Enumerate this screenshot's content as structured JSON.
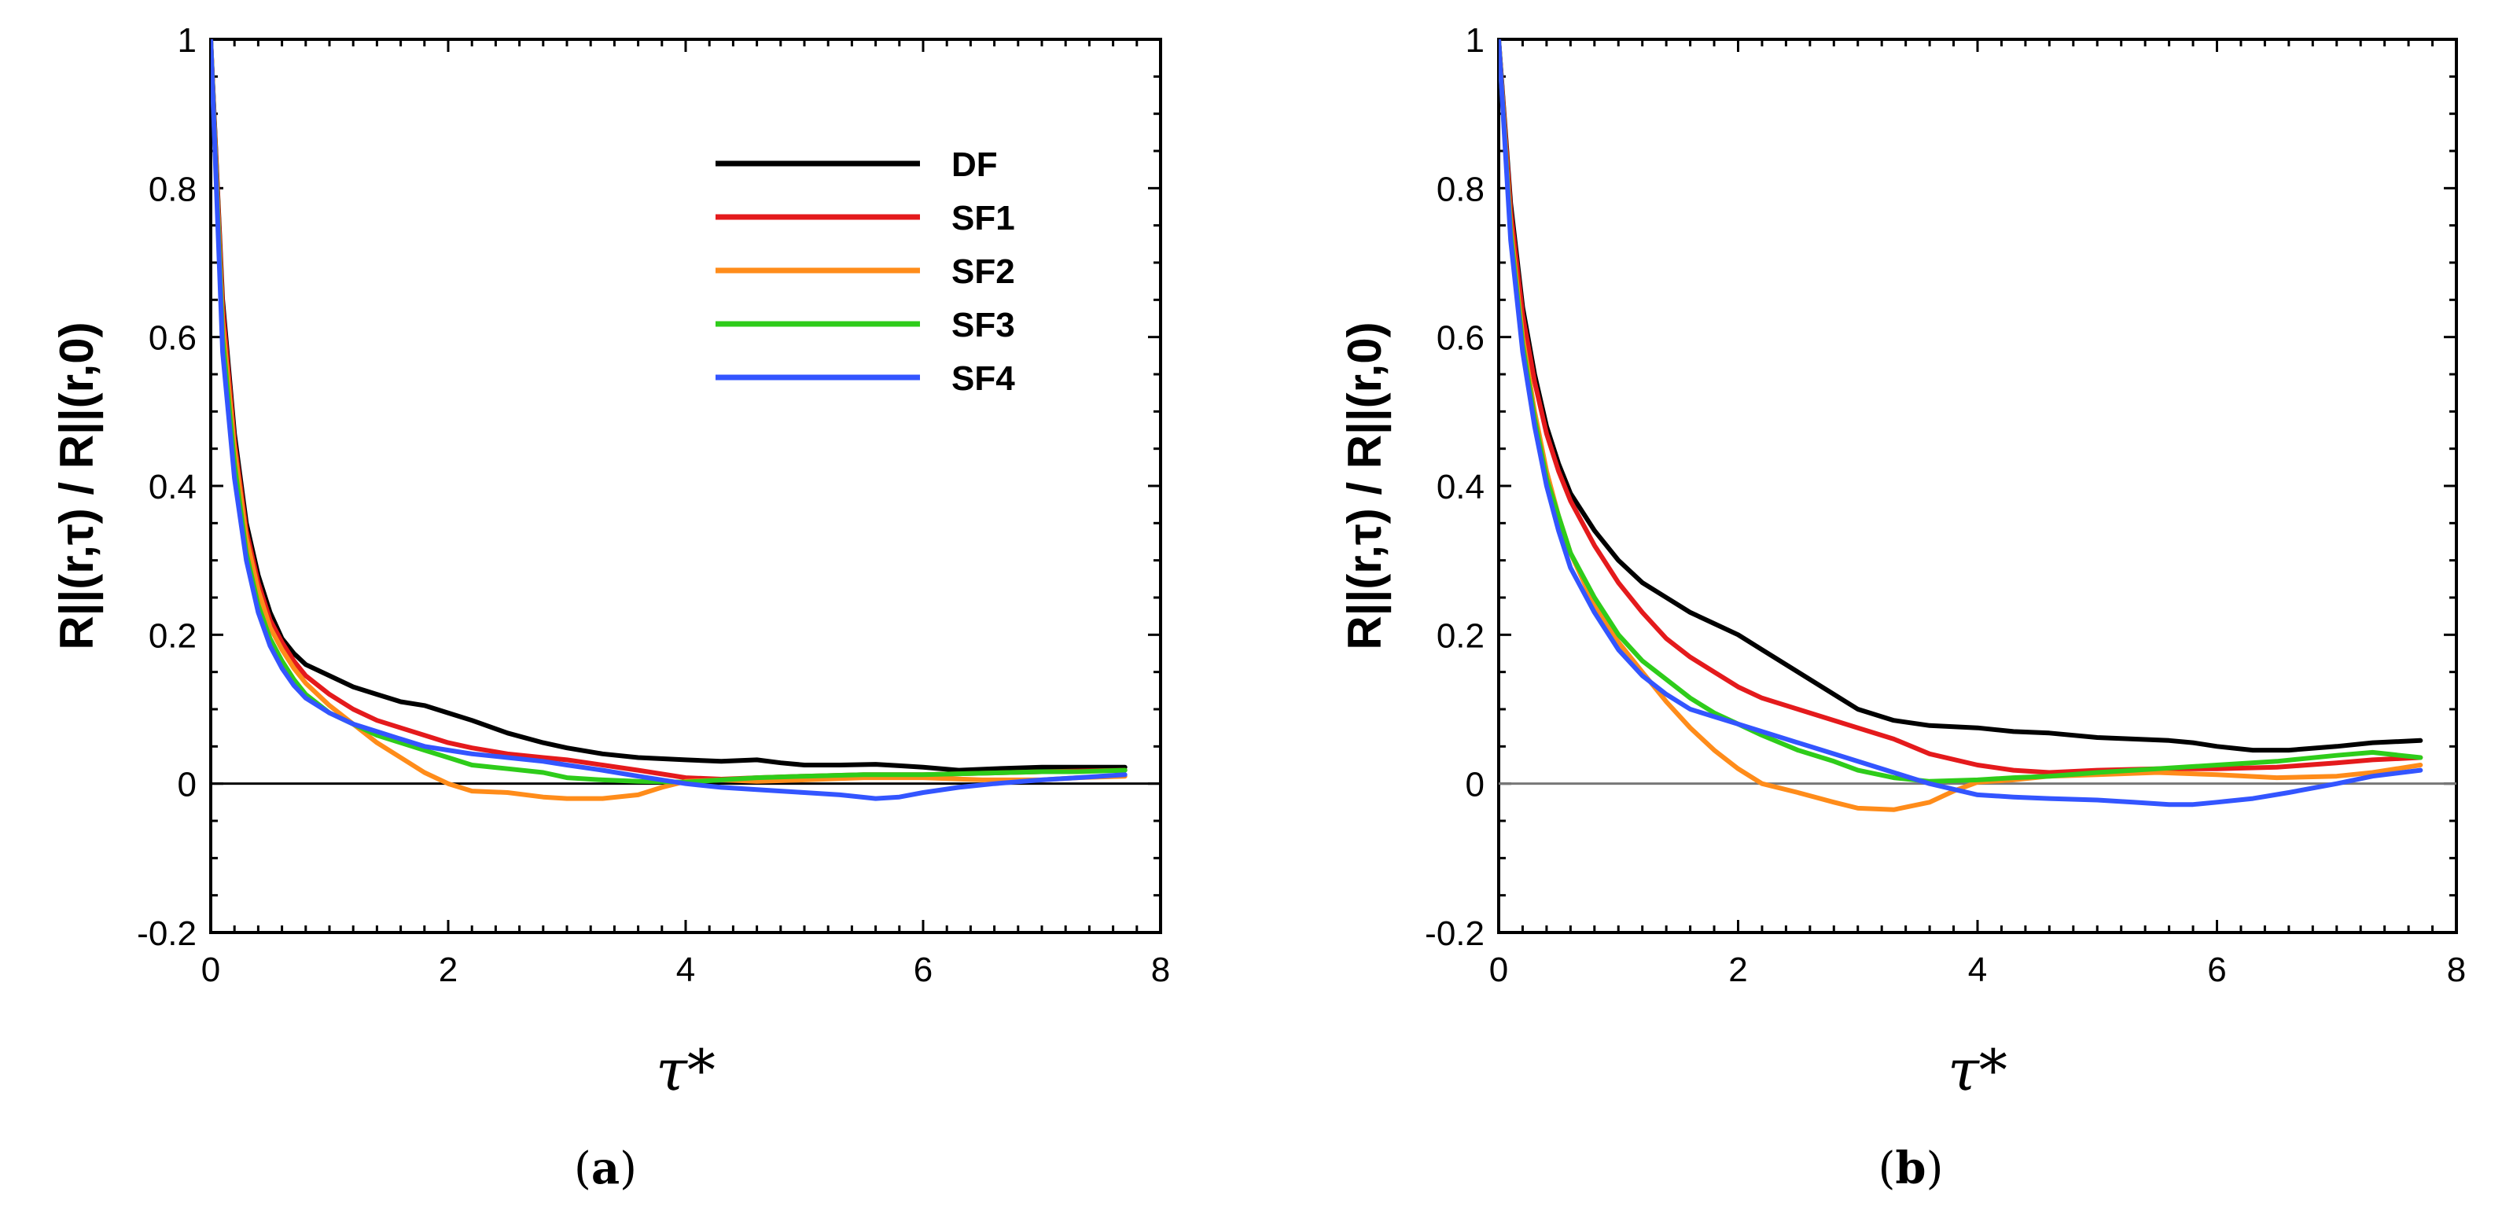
{
  "chart_data": [
    {
      "type": "line",
      "panel": "a",
      "caption_letter": "a",
      "xlabel": "τ*",
      "ylabel": "R||(r,τ) / R||(r,0)",
      "xlim": [
        0,
        8
      ],
      "ylim": [
        -0.2,
        1
      ],
      "xticks": [
        "0",
        "2",
        "4",
        "6",
        "8"
      ],
      "yticks": [
        "-0.2",
        "0",
        "0.2",
        "0.4",
        "0.6",
        "0.8",
        "1"
      ],
      "grid": false,
      "zero_line": true,
      "legend": {
        "position": "top-right"
      },
      "series": [
        {
          "name": "DF",
          "color": "#000000",
          "x": [
            0,
            0.1,
            0.2,
            0.3,
            0.4,
            0.5,
            0.6,
            0.7,
            0.8,
            1.0,
            1.2,
            1.4,
            1.6,
            1.8,
            2.0,
            2.2,
            2.5,
            2.8,
            3.0,
            3.3,
            3.6,
            4.0,
            4.3,
            4.6,
            4.8,
            5.0,
            5.3,
            5.6,
            5.8,
            6.0,
            6.3,
            6.6,
            7.0,
            7.3,
            7.7
          ],
          "y": [
            1.0,
            0.65,
            0.47,
            0.35,
            0.28,
            0.23,
            0.195,
            0.175,
            0.16,
            0.145,
            0.13,
            0.12,
            0.11,
            0.105,
            0.095,
            0.085,
            0.068,
            0.055,
            0.048,
            0.04,
            0.035,
            0.032,
            0.03,
            0.032,
            0.028,
            0.025,
            0.025,
            0.026,
            0.024,
            0.022,
            0.018,
            0.02,
            0.022,
            0.022,
            0.022
          ]
        },
        {
          "name": "SF1",
          "color": "#e41a1c",
          "x": [
            0,
            0.1,
            0.2,
            0.3,
            0.4,
            0.5,
            0.6,
            0.7,
            0.8,
            1.0,
            1.2,
            1.4,
            1.6,
            1.8,
            2.0,
            2.2,
            2.5,
            2.8,
            3.0,
            3.3,
            3.6,
            4.0,
            4.3,
            4.6,
            5.0,
            5.5,
            6.0,
            6.5,
            7.0,
            7.3,
            7.7
          ],
          "y": [
            1.0,
            0.64,
            0.46,
            0.34,
            0.27,
            0.22,
            0.19,
            0.165,
            0.145,
            0.12,
            0.1,
            0.085,
            0.075,
            0.065,
            0.055,
            0.048,
            0.04,
            0.035,
            0.032,
            0.025,
            0.018,
            0.008,
            0.006,
            0.008,
            0.01,
            0.012,
            0.012,
            0.014,
            0.016,
            0.017,
            0.018
          ]
        },
        {
          "name": "SF2",
          "color": "#ff8c1a",
          "x": [
            0,
            0.1,
            0.2,
            0.3,
            0.4,
            0.5,
            0.6,
            0.7,
            0.8,
            1.0,
            1.2,
            1.4,
            1.6,
            1.8,
            2.0,
            2.2,
            2.5,
            2.8,
            3.0,
            3.3,
            3.6,
            3.8,
            4.0,
            4.3,
            4.6,
            5.0,
            5.5,
            6.0,
            6.5,
            7.0,
            7.3,
            7.7
          ],
          "y": [
            1.0,
            0.62,
            0.45,
            0.33,
            0.26,
            0.21,
            0.18,
            0.155,
            0.135,
            0.105,
            0.08,
            0.055,
            0.035,
            0.015,
            0.0,
            -0.01,
            -0.012,
            -0.018,
            -0.02,
            -0.02,
            -0.015,
            -0.005,
            0.003,
            0.005,
            0.003,
            0.005,
            0.008,
            0.008,
            0.005,
            0.005,
            0.008,
            0.01
          ]
        },
        {
          "name": "SF3",
          "color": "#2ecc1a",
          "x": [
            0,
            0.1,
            0.2,
            0.3,
            0.4,
            0.5,
            0.6,
            0.7,
            0.8,
            1.0,
            1.2,
            1.4,
            1.6,
            1.8,
            2.0,
            2.2,
            2.5,
            2.8,
            3.0,
            3.3,
            3.6,
            4.0,
            4.3,
            4.6,
            5.0,
            5.5,
            6.0,
            6.5,
            7.0,
            7.3,
            7.7
          ],
          "y": [
            1.0,
            0.6,
            0.43,
            0.31,
            0.24,
            0.195,
            0.165,
            0.14,
            0.12,
            0.095,
            0.08,
            0.065,
            0.055,
            0.045,
            0.035,
            0.025,
            0.02,
            0.015,
            0.008,
            0.005,
            0.003,
            0.002,
            0.005,
            0.008,
            0.01,
            0.012,
            0.012,
            0.014,
            0.016,
            0.016,
            0.018
          ]
        },
        {
          "name": "SF4",
          "color": "#3355ff",
          "x": [
            0,
            0.1,
            0.2,
            0.3,
            0.4,
            0.5,
            0.6,
            0.7,
            0.8,
            1.0,
            1.2,
            1.4,
            1.6,
            1.8,
            2.0,
            2.2,
            2.5,
            2.8,
            3.0,
            3.3,
            3.6,
            4.0,
            4.3,
            4.6,
            5.0,
            5.3,
            5.6,
            5.8,
            6.0,
            6.3,
            6.6,
            7.0,
            7.3,
            7.7
          ],
          "y": [
            1.0,
            0.58,
            0.41,
            0.3,
            0.23,
            0.185,
            0.155,
            0.132,
            0.115,
            0.095,
            0.08,
            0.07,
            0.06,
            0.05,
            0.045,
            0.04,
            0.035,
            0.03,
            0.025,
            0.018,
            0.01,
            0.0,
            -0.005,
            -0.008,
            -0.012,
            -0.015,
            -0.02,
            -0.018,
            -0.012,
            -0.005,
            0.0,
            0.005,
            0.008,
            0.012
          ]
        }
      ]
    },
    {
      "type": "line",
      "panel": "b",
      "caption_letter": "b",
      "xlabel": "τ*",
      "ylabel": "R||(r,τ) / R||(r,0)",
      "xlim": [
        0,
        8
      ],
      "ylim": [
        -0.2,
        1
      ],
      "xticks": [
        "0",
        "2",
        "4",
        "6",
        "8"
      ],
      "yticks": [
        "-0.2",
        "0",
        "0.2",
        "0.4",
        "0.6",
        "0.8",
        "1"
      ],
      "grid": false,
      "zero_line": true,
      "series": [
        {
          "name": "DF",
          "color": "#000000",
          "x": [
            0,
            0.1,
            0.2,
            0.3,
            0.4,
            0.5,
            0.6,
            0.8,
            1.0,
            1.2,
            1.4,
            1.6,
            1.8,
            2.0,
            2.2,
            2.5,
            2.8,
            3.0,
            3.3,
            3.6,
            4.0,
            4.3,
            4.6,
            5.0,
            5.3,
            5.6,
            5.8,
            6.0,
            6.3,
            6.6,
            7.0,
            7.3,
            7.7
          ],
          "y": [
            1.0,
            0.78,
            0.64,
            0.55,
            0.48,
            0.43,
            0.39,
            0.34,
            0.3,
            0.27,
            0.25,
            0.23,
            0.215,
            0.2,
            0.18,
            0.15,
            0.12,
            0.1,
            0.085,
            0.078,
            0.075,
            0.07,
            0.068,
            0.062,
            0.06,
            0.058,
            0.055,
            0.05,
            0.045,
            0.045,
            0.05,
            0.055,
            0.058
          ]
        },
        {
          "name": "SF1",
          "color": "#e41a1c",
          "x": [
            0,
            0.1,
            0.2,
            0.3,
            0.4,
            0.5,
            0.6,
            0.8,
            1.0,
            1.2,
            1.4,
            1.6,
            1.8,
            2.0,
            2.2,
            2.5,
            2.8,
            3.0,
            3.3,
            3.6,
            4.0,
            4.3,
            4.6,
            5.0,
            5.5,
            6.0,
            6.5,
            7.0,
            7.3,
            7.7
          ],
          "y": [
            1.0,
            0.77,
            0.63,
            0.54,
            0.47,
            0.42,
            0.38,
            0.32,
            0.27,
            0.23,
            0.195,
            0.17,
            0.15,
            0.13,
            0.115,
            0.1,
            0.085,
            0.075,
            0.06,
            0.04,
            0.025,
            0.018,
            0.015,
            0.018,
            0.02,
            0.02,
            0.022,
            0.028,
            0.032,
            0.035
          ]
        },
        {
          "name": "SF2",
          "color": "#ff8c1a",
          "x": [
            0,
            0.1,
            0.2,
            0.3,
            0.4,
            0.5,
            0.6,
            0.8,
            1.0,
            1.2,
            1.4,
            1.6,
            1.8,
            2.0,
            2.2,
            2.5,
            2.8,
            3.0,
            3.3,
            3.6,
            3.8,
            4.0,
            4.3,
            4.6,
            5.0,
            5.5,
            6.0,
            6.5,
            7.0,
            7.3,
            7.7
          ],
          "y": [
            1.0,
            0.75,
            0.6,
            0.5,
            0.42,
            0.36,
            0.31,
            0.24,
            0.19,
            0.15,
            0.11,
            0.075,
            0.045,
            0.02,
            0.0,
            -0.012,
            -0.025,
            -0.033,
            -0.035,
            -0.025,
            -0.01,
            0.002,
            0.005,
            0.01,
            0.012,
            0.015,
            0.012,
            0.008,
            0.01,
            0.015,
            0.025
          ]
        },
        {
          "name": "SF3",
          "color": "#2ecc1a",
          "x": [
            0,
            0.1,
            0.2,
            0.3,
            0.4,
            0.5,
            0.6,
            0.8,
            1.0,
            1.2,
            1.4,
            1.6,
            1.8,
            2.0,
            2.2,
            2.5,
            2.8,
            3.0,
            3.3,
            3.6,
            4.0,
            4.3,
            4.6,
            5.0,
            5.5,
            6.0,
            6.5,
            7.0,
            7.3,
            7.7
          ],
          "y": [
            1.0,
            0.74,
            0.59,
            0.49,
            0.41,
            0.36,
            0.31,
            0.25,
            0.2,
            0.165,
            0.14,
            0.115,
            0.095,
            0.08,
            0.065,
            0.045,
            0.03,
            0.018,
            0.008,
            0.003,
            0.005,
            0.008,
            0.01,
            0.015,
            0.02,
            0.025,
            0.03,
            0.038,
            0.042,
            0.035
          ]
        },
        {
          "name": "SF4",
          "color": "#3355ff",
          "x": [
            0,
            0.1,
            0.2,
            0.3,
            0.4,
            0.5,
            0.6,
            0.8,
            1.0,
            1.2,
            1.4,
            1.6,
            1.8,
            2.0,
            2.2,
            2.5,
            2.8,
            3.0,
            3.3,
            3.6,
            4.0,
            4.3,
            4.6,
            5.0,
            5.3,
            5.6,
            5.8,
            6.0,
            6.3,
            6.6,
            7.0,
            7.3,
            7.7
          ],
          "y": [
            1.0,
            0.73,
            0.58,
            0.48,
            0.4,
            0.34,
            0.29,
            0.23,
            0.18,
            0.145,
            0.12,
            0.1,
            0.09,
            0.08,
            0.07,
            0.055,
            0.04,
            0.03,
            0.015,
            0.0,
            -0.015,
            -0.018,
            -0.02,
            -0.022,
            -0.025,
            -0.028,
            -0.028,
            -0.025,
            -0.02,
            -0.012,
            0.0,
            0.01,
            0.018
          ]
        }
      ]
    }
  ]
}
